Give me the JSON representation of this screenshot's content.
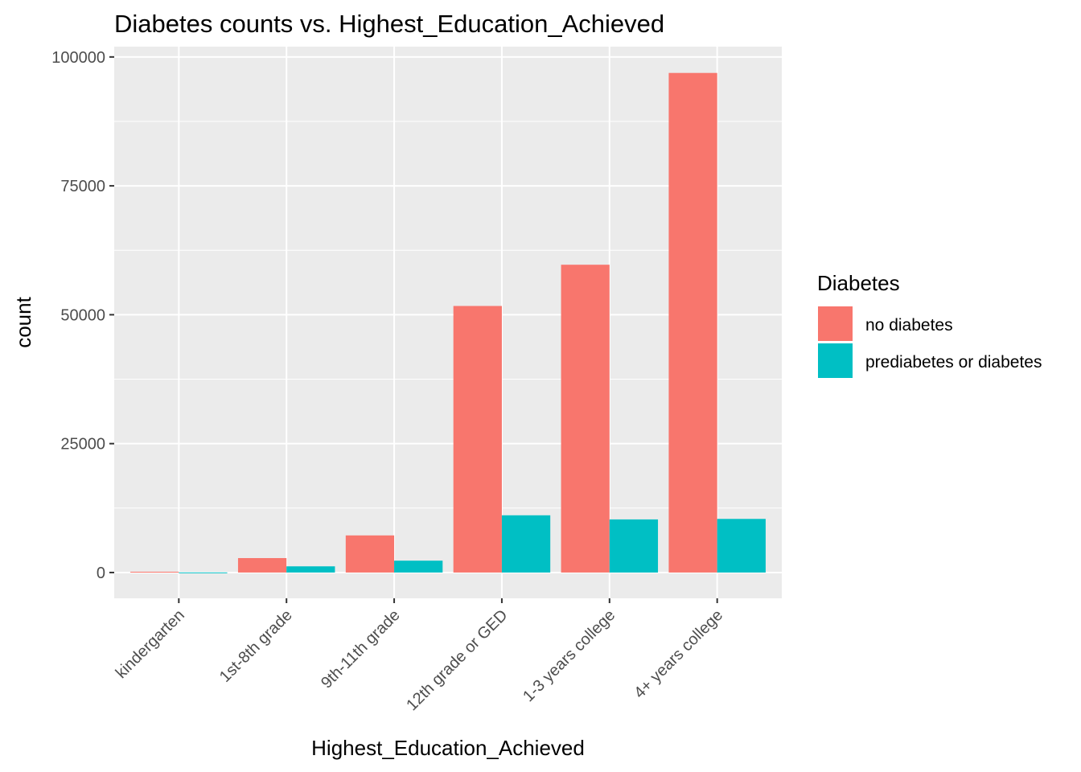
{
  "chart_data": {
    "type": "bar",
    "title": "Diabetes counts vs. Highest_Education_Achieved",
    "xlabel": "Highest_Education_Achieved",
    "ylabel": "count",
    "categories": [
      "kindergarten",
      "1st-8th grade",
      "9th-11th grade",
      "12th grade or GED",
      "1-3 years college",
      "4+ years college"
    ],
    "series": [
      {
        "name": "no diabetes",
        "color": "#F8766D",
        "values": [
          150,
          2800,
          7200,
          51700,
          59700,
          96900
        ]
      },
      {
        "name": "prediabetes or diabetes",
        "color": "#00BFC4",
        "values": [
          20,
          1200,
          2300,
          11100,
          10300,
          10400
        ]
      }
    ],
    "ylim": [
      -5000,
      102000
    ],
    "yticks": [
      0,
      25000,
      50000,
      75000,
      100000
    ],
    "ytick_labels": [
      "0",
      "25000",
      "50000",
      "75000",
      "100000"
    ],
    "legend": {
      "title": "Diabetes",
      "position": "right"
    },
    "grid": true
  }
}
